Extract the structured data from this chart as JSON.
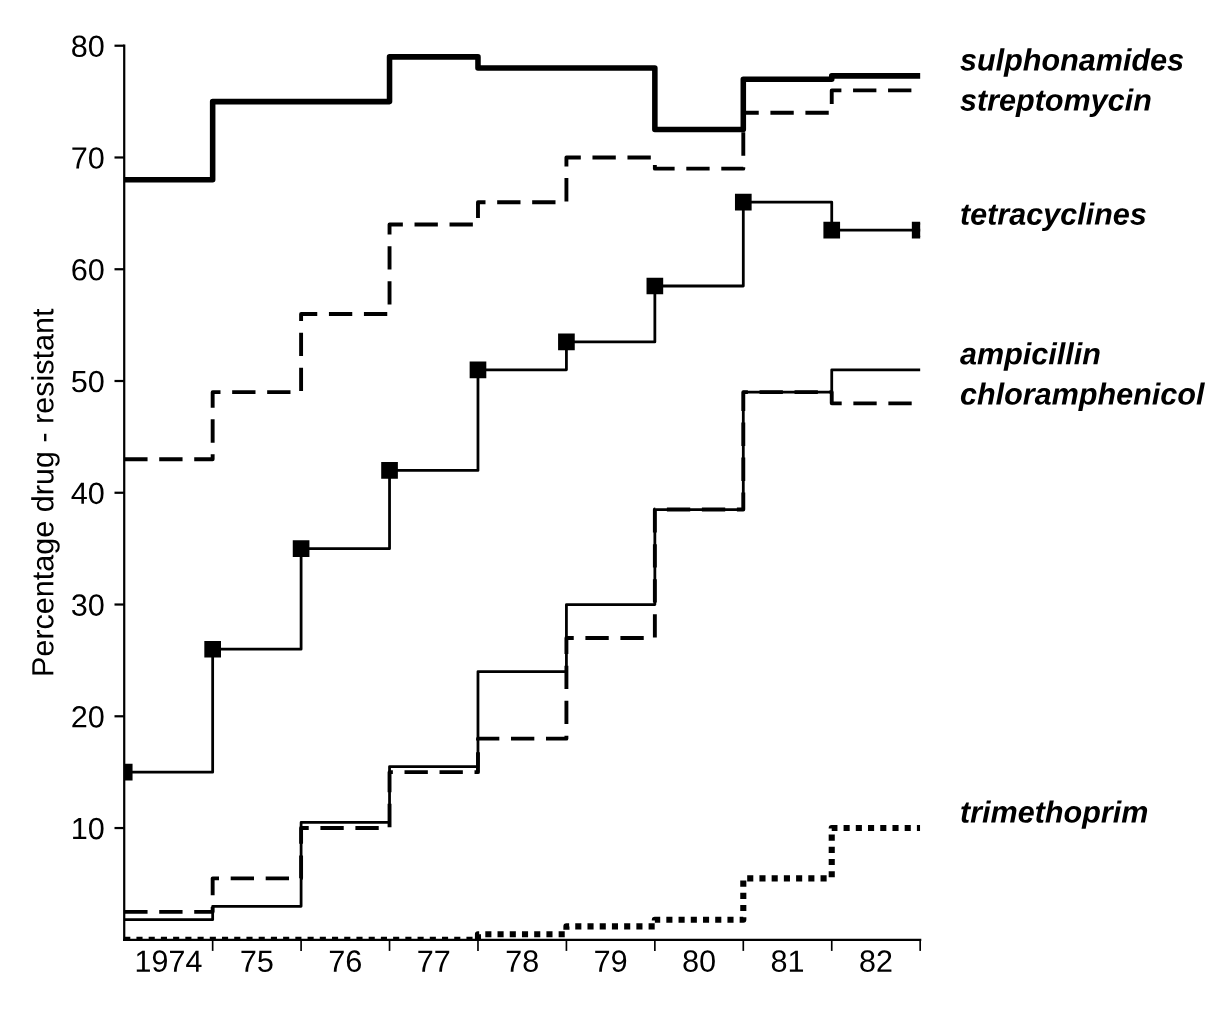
{
  "chart_data": {
    "type": "step",
    "ylabel": "Percentage drug - resistant",
    "x": [
      1973.5,
      1974.5,
      1975.5,
      1976.5,
      1977.5,
      1978.5,
      1979.5,
      1980.5,
      1981.5,
      1982.5
    ],
    "xlim": [
      1973.5,
      1982.5
    ],
    "xticks": [
      {
        "value": 1974,
        "label": "1974"
      },
      {
        "value": 1975,
        "label": "75"
      },
      {
        "value": 1976,
        "label": "76"
      },
      {
        "value": 1977,
        "label": "77"
      },
      {
        "value": 1978,
        "label": "78"
      },
      {
        "value": 1979,
        "label": "79"
      },
      {
        "value": 1980,
        "label": "80"
      },
      {
        "value": 1981,
        "label": "81"
      },
      {
        "value": 1982,
        "label": "82"
      }
    ],
    "ylim": [
      0,
      80
    ],
    "yticks": [
      10,
      20,
      30,
      40,
      50,
      60,
      70,
      80
    ],
    "grid": false,
    "legend": "right",
    "series": [
      {
        "name": "sulphonamides",
        "color": "#000000",
        "line_style": "solid",
        "values": [
          68,
          75,
          75,
          79,
          78,
          78,
          72.5,
          77,
          77.3,
          77.3
        ]
      },
      {
        "name": "streptomycin",
        "color": "#000000",
        "line_style": "dashed",
        "values": [
          43,
          49,
          56,
          64,
          66,
          70,
          69,
          74,
          76,
          76
        ]
      },
      {
        "name": "tetracyclines",
        "color": "#000000",
        "line_style": "solid",
        "marker": "square",
        "values": [
          15,
          26,
          35,
          42,
          51,
          53.5,
          58.5,
          66,
          63.5,
          63.5
        ]
      },
      {
        "name": "ampicillin",
        "color": "#000000",
        "line_style": "solid",
        "values": [
          1.8,
          3,
          10.5,
          15.5,
          24,
          30,
          38.5,
          49,
          51,
          51
        ]
      },
      {
        "name": "chloramphenicol",
        "color": "#000000",
        "line_style": "dashed",
        "values": [
          2.5,
          5.5,
          10,
          15,
          18,
          27,
          38.5,
          49,
          48,
          48
        ]
      },
      {
        "name": "trimethoprim",
        "color": "#000000",
        "line_style": "dotted",
        "values": [
          0,
          0,
          0,
          0,
          0.5,
          1.2,
          1.8,
          5.5,
          10,
          10
        ]
      }
    ]
  }
}
